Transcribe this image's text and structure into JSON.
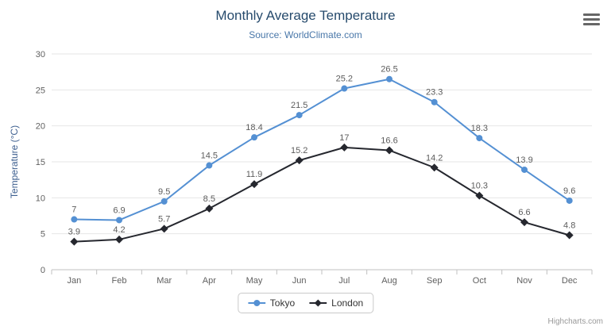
{
  "credits": "Highcharts.com",
  "chart_data": {
    "type": "line",
    "title": "Monthly Average Temperature",
    "subtitle": "Source: WorldClimate.com",
    "categories": [
      "Jan",
      "Feb",
      "Mar",
      "Apr",
      "May",
      "Jun",
      "Jul",
      "Aug",
      "Sep",
      "Oct",
      "Nov",
      "Dec"
    ],
    "series": [
      {
        "name": "Tokyo",
        "color": "#5490d3",
        "marker": "circle",
        "values": [
          7,
          6.9,
          9.5,
          14.5,
          18.4,
          21.5,
          25.2,
          26.5,
          23.3,
          18.3,
          13.9,
          9.6
        ]
      },
      {
        "name": "London",
        "color": "#25272e",
        "marker": "diamond",
        "values": [
          3.9,
          4.2,
          5.7,
          8.5,
          11.9,
          15.2,
          17,
          16.6,
          14.2,
          10.3,
          6.6,
          4.8
        ]
      }
    ],
    "xlabel": "",
    "ylabel": "Temperature (°C)",
    "ylim": [
      0,
      30
    ],
    "yticks": [
      0,
      5,
      10,
      15,
      20,
      25,
      30
    ],
    "grid": true,
    "legend_position": "bottom",
    "data_labels": true
  }
}
